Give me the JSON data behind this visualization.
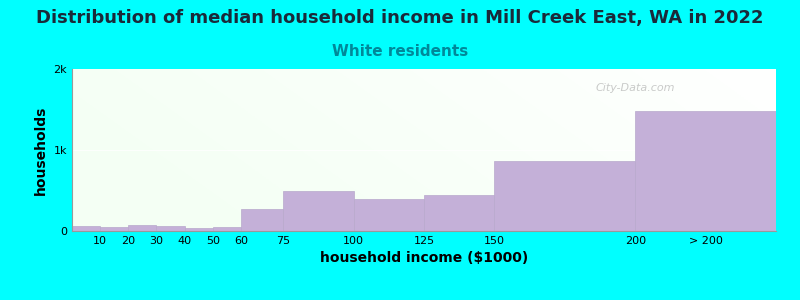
{
  "title": "Distribution of median household income in Mill Creek East, WA in 2022",
  "subtitle": "White residents",
  "xlabel": "household income ($1000)",
  "ylabel": "households",
  "background_outer": "#00FFFF",
  "bar_color": "#C4B0D8",
  "bar_edge_color": "#B8A8CC",
  "title_color": "#1a2a3a",
  "subtitle_color": "#008899",
  "ylim": [
    0,
    2000
  ],
  "yticks": [
    0,
    1000,
    2000
  ],
  "ytick_labels": [
    "0",
    "1k",
    "2k"
  ],
  "title_fontsize": 13,
  "subtitle_fontsize": 11,
  "axis_label_fontsize": 10,
  "watermark": "City-Data.com",
  "bin_edges": [
    0,
    10,
    20,
    30,
    40,
    50,
    60,
    75,
    100,
    125,
    150,
    200,
    250
  ],
  "bin_labels": [
    "10",
    "20",
    "30",
    "40",
    "50",
    "60",
    "75",
    "100",
    "125",
    "150",
    "200",
    "> 200"
  ],
  "values": [
    60,
    50,
    80,
    60,
    40,
    50,
    270,
    490,
    390,
    450,
    860,
    1480
  ]
}
